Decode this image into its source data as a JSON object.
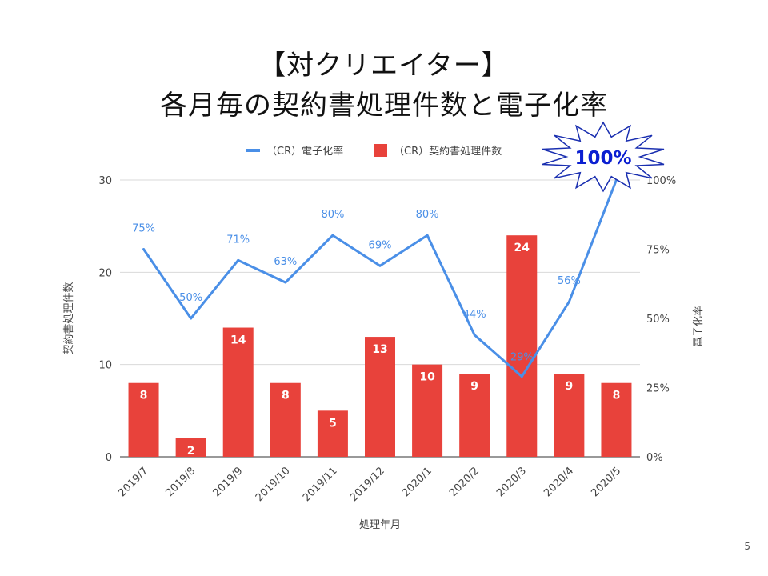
{
  "slide": {
    "title_line1": "【対クリエイター】",
    "title_line2": "各月毎の契約書処理件数と電子化率",
    "page_number": "5",
    "callout_text": "100%"
  },
  "colors": {
    "bar": "#e8423b",
    "line": "#4a8fe7",
    "callout_text": "#0b1fd1",
    "grid": "#d9d9d9",
    "axis_text": "#444444"
  },
  "chart_data": {
    "type": "bar",
    "combo_line": true,
    "categories": [
      "2019/7",
      "2019/8",
      "2019/9",
      "2019/10",
      "2019/11",
      "2019/12",
      "2020/1",
      "2020/2",
      "2020/3",
      "2020/4",
      "2020/5"
    ],
    "series": [
      {
        "name": "（CR）契約書処理件数",
        "type": "bar",
        "axis": "left",
        "values": [
          8,
          2,
          14,
          8,
          5,
          13,
          10,
          9,
          24,
          9,
          8
        ]
      },
      {
        "name": "（CR）電子化率",
        "type": "line",
        "axis": "right",
        "values": [
          75,
          50,
          71,
          63,
          80,
          69,
          80,
          44,
          29,
          56,
          100
        ],
        "labels": [
          "75%",
          "50%",
          "71%",
          "63%",
          "80%",
          "69%",
          "80%",
          "44%",
          "29%",
          "56%",
          ""
        ]
      }
    ],
    "xlabel": "処理年月",
    "ylabel": "契約書処理件数",
    "y2label": "電子化率",
    "ylim": [
      0,
      30
    ],
    "yticks": [
      "0",
      "10",
      "20",
      "30"
    ],
    "y2lim": [
      0,
      100
    ],
    "y2ticks": [
      "0%",
      "25%",
      "50%",
      "75%",
      "100%"
    ],
    "legend_position": "top",
    "grid": true
  }
}
